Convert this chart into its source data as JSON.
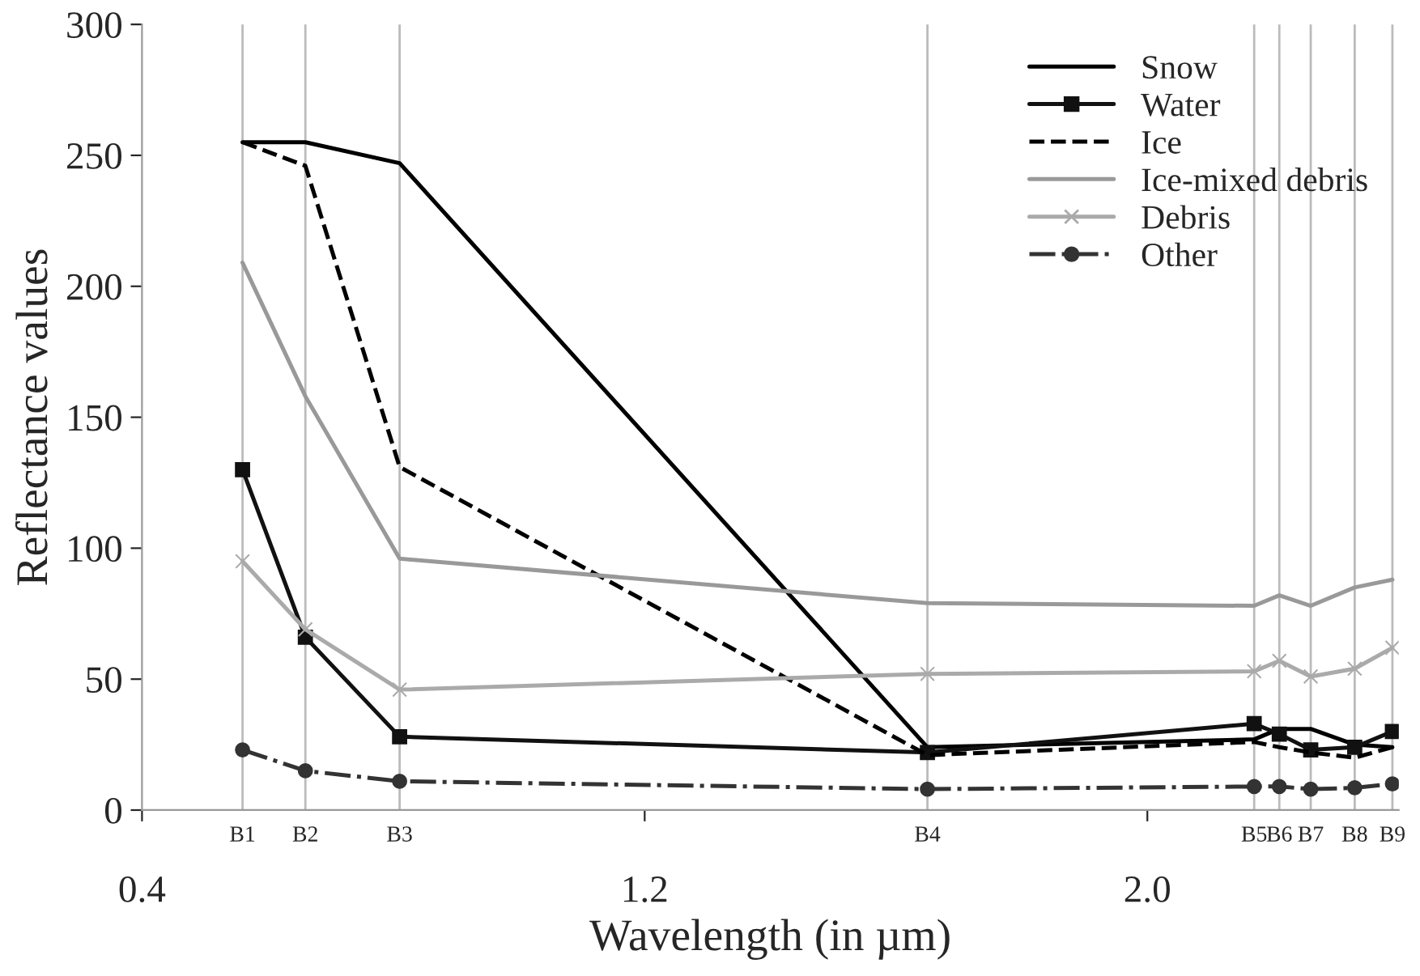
{
  "chart_data": {
    "type": "line",
    "xlabel": "Wavelength (in µm)",
    "ylabel": "Reflectance values",
    "x": [
      0.56,
      0.66,
      0.81,
      1.65,
      2.17,
      2.21,
      2.26,
      2.33,
      2.39
    ],
    "series": [
      {
        "name": "Snow",
        "color": "#000000",
        "line_style": "solid",
        "marker": "none",
        "values": [
          255,
          255,
          247,
          24,
          27,
          31,
          31,
          25,
          24
        ]
      },
      {
        "name": "Water",
        "color": "#111111",
        "line_style": "solid",
        "marker": "square",
        "values": [
          130,
          66,
          28,
          22,
          33,
          29,
          23,
          24,
          30
        ]
      },
      {
        "name": "Ice",
        "color": "#000000",
        "line_style": "dashed",
        "marker": "none",
        "values": [
          255,
          246,
          131,
          21,
          26,
          24,
          22,
          20,
          24
        ]
      },
      {
        "name": "Ice-mixed debris",
        "color": "#999999",
        "line_style": "solid",
        "marker": "none",
        "values": [
          209,
          158,
          96,
          79,
          78,
          82,
          78,
          85,
          88
        ]
      },
      {
        "name": "Debris",
        "color": "#aaaaaa",
        "line_style": "solid",
        "marker": "cross",
        "values": [
          95,
          69,
          46,
          52,
          53,
          57,
          51,
          54,
          62
        ]
      },
      {
        "name": "Other",
        "color": "#333333",
        "line_style": "dashdot",
        "marker": "circle",
        "values": [
          23,
          15,
          11,
          8,
          9,
          9,
          8,
          8.5,
          10
        ]
      }
    ],
    "xlim": [
      0.4,
      2.4
    ],
    "xticks": [
      0.4,
      1.2,
      {
        "value": 2.0,
        "label": "2.0"
      }
    ],
    "ylim": [
      0,
      300
    ],
    "yticks": [
      0,
      50,
      100,
      150,
      200,
      250,
      300
    ],
    "ref_lines": [
      {
        "axis": "x",
        "value": 0.56,
        "label": "B1",
        "color": "#bbbbbb"
      },
      {
        "axis": "x",
        "value": 0.66,
        "label": "B2",
        "color": "#bbbbbb"
      },
      {
        "axis": "x",
        "value": 0.81,
        "label": "B3",
        "color": "#bbbbbb"
      },
      {
        "axis": "x",
        "value": 1.65,
        "label": "B4",
        "color": "#bbbbbb"
      },
      {
        "axis": "x",
        "value": 2.17,
        "label": "B5",
        "color": "#bbbbbb"
      },
      {
        "axis": "x",
        "value": 2.21,
        "label": "B6",
        "color": "#bbbbbb"
      },
      {
        "axis": "x",
        "value": 2.26,
        "label": "B7",
        "color": "#bbbbbb"
      },
      {
        "axis": "x",
        "value": 2.33,
        "label": "B8",
        "color": "#bbbbbb"
      },
      {
        "axis": "x",
        "value": 2.39,
        "label": "B9",
        "color": "#bbbbbb"
      }
    ],
    "grid": false,
    "legend": "top right"
  }
}
